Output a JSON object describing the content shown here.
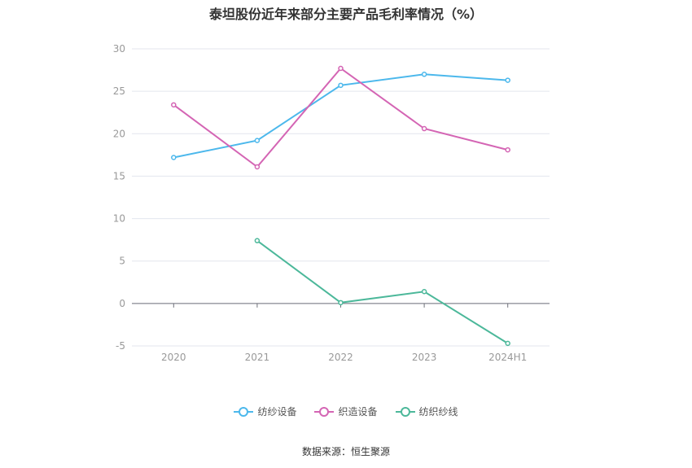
{
  "title": "泰坦股份近年来部分主要产品毛利率情况（%）",
  "source": "数据来源：恒生聚源",
  "chart_data": {
    "type": "line",
    "categories": [
      "2020",
      "2021",
      "2022",
      "2023",
      "2024H1"
    ],
    "yticks": [
      "30",
      "25",
      "20",
      "15",
      "10",
      "5",
      "0",
      "-5"
    ],
    "ylim": [
      -5,
      30
    ],
    "grid": true,
    "legend_position": "bottom",
    "series": [
      {
        "name": "纺纱设备",
        "color": "#4cb8ec",
        "values": [
          17.2,
          19.2,
          25.7,
          27.0,
          26.3
        ]
      },
      {
        "name": "织造设备",
        "color": "#d465b4",
        "values": [
          23.4,
          16.1,
          27.7,
          20.6,
          18.1
        ]
      },
      {
        "name": "纺织纱线",
        "color": "#4cb89a",
        "values": [
          null,
          7.4,
          0.1,
          1.4,
          -4.7
        ]
      }
    ]
  }
}
